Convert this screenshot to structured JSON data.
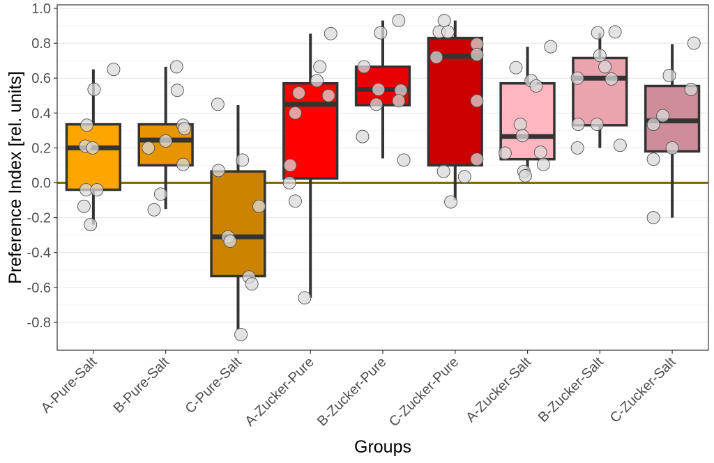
{
  "chart_data": {
    "type": "box",
    "xlabel": "Groups",
    "ylabel": "Preference Index [rel. units]",
    "ylim": [
      -0.96,
      1.02
    ],
    "yticks": [
      1.0,
      0.8,
      0.6,
      0.4,
      0.2,
      0.0,
      -0.2,
      -0.4,
      -0.6,
      -0.8
    ],
    "ytick_labels": [
      "1.0",
      "0.8",
      "0.6",
      "0.4",
      "0.2",
      "0.0",
      "-0.2",
      "-0.4",
      "-0.6",
      "-0.8"
    ],
    "grid": true,
    "reference_line": {
      "y": 0.0,
      "color": "#7f6a00"
    },
    "point_color": "#d9d9d9",
    "categories": [
      "A-Pure-Salt",
      "B-Pure-Salt",
      "C-Pure-Salt",
      "A-Zucker-Pure",
      "B-Zucker-Pure",
      "C-Zucker-Pure",
      "A-Zucker-Salt",
      "B-Zucker-Salt",
      "C-Zucker-Salt"
    ],
    "boxes": [
      {
        "group": "A-Pure-Salt",
        "color": "#ffa500",
        "whisker_low": -0.24,
        "q1": -0.04,
        "median": 0.2,
        "q3": 0.335,
        "whisker_high": 0.65,
        "points": [
          [
            -0.09,
            0.33
          ],
          [
            -0.11,
            0.21
          ],
          [
            -0.01,
            0.2
          ],
          [
            0.01,
            0.535
          ],
          [
            0.28,
            0.65
          ],
          [
            -0.1,
            -0.04
          ],
          [
            0.05,
            -0.04
          ],
          [
            -0.13,
            -0.135
          ],
          [
            -0.04,
            -0.24
          ]
        ]
      },
      {
        "group": "B-Pure-Salt",
        "color": "#e69400",
        "whisker_low": -0.15,
        "q1": 0.1,
        "median": 0.245,
        "q3": 0.335,
        "whisker_high": 0.665,
        "points": [
          [
            0.15,
            0.665
          ],
          [
            0.16,
            0.53
          ],
          [
            0.24,
            0.33
          ],
          [
            0.26,
            0.31
          ],
          [
            0.0,
            0.24
          ],
          [
            -0.24,
            0.2
          ],
          [
            0.24,
            0.105
          ],
          [
            -0.07,
            -0.065
          ],
          [
            -0.16,
            -0.155
          ]
        ]
      },
      {
        "group": "C-Pure-Salt",
        "color": "#cc8400",
        "whisker_low": -0.84,
        "q1": -0.535,
        "median": -0.31,
        "q3": 0.065,
        "whisker_high": 0.445,
        "points": [
          [
            -0.28,
            0.45
          ],
          [
            0.06,
            0.13
          ],
          [
            -0.27,
            0.07
          ],
          [
            0.29,
            -0.135
          ],
          [
            -0.14,
            -0.31
          ],
          [
            -0.11,
            -0.335
          ],
          [
            0.15,
            -0.54
          ],
          [
            0.19,
            -0.58
          ],
          [
            0.04,
            -0.87
          ]
        ]
      },
      {
        "group": "A-Zucker-Pure",
        "color": "#ff0000",
        "whisker_low": -0.66,
        "q1": 0.025,
        "median": 0.45,
        "q3": 0.57,
        "whisker_high": 0.855,
        "points": [
          [
            0.28,
            0.855
          ],
          [
            0.13,
            0.665
          ],
          [
            0.09,
            0.585
          ],
          [
            -0.16,
            0.515
          ],
          [
            0.25,
            0.5
          ],
          [
            -0.21,
            0.4
          ],
          [
            -0.28,
            0.1
          ],
          [
            -0.29,
            0.0
          ],
          [
            -0.21,
            -0.105
          ],
          [
            -0.08,
            -0.66
          ]
        ]
      },
      {
        "group": "B-Zucker-Pure",
        "color": "#e60000",
        "whisker_low": 0.14,
        "q1": 0.445,
        "median": 0.535,
        "q3": 0.665,
        "whisker_high": 0.93,
        "points": [
          [
            0.22,
            0.93
          ],
          [
            -0.03,
            0.86
          ],
          [
            -0.26,
            0.665
          ],
          [
            -0.06,
            0.535
          ],
          [
            0.25,
            0.53
          ],
          [
            0.22,
            0.47
          ],
          [
            -0.09,
            0.45
          ],
          [
            -0.28,
            0.265
          ],
          [
            0.29,
            0.13
          ]
        ]
      },
      {
        "group": "C-Zucker-Pure",
        "color": "#cc0000",
        "whisker_low": -0.1,
        "q1": 0.1,
        "median": 0.725,
        "q3": 0.83,
        "whisker_high": 0.93,
        "points": [
          [
            -0.15,
            0.93
          ],
          [
            -0.22,
            0.865
          ],
          [
            -0.1,
            0.865
          ],
          [
            0.3,
            0.795
          ],
          [
            -0.26,
            0.72
          ],
          [
            0.3,
            0.735
          ],
          [
            0.3,
            0.47
          ],
          [
            0.3,
            0.135
          ],
          [
            -0.16,
            0.065
          ],
          [
            0.13,
            0.035
          ],
          [
            -0.06,
            -0.11
          ]
        ]
      },
      {
        "group": "A-Zucker-Salt",
        "color": "#ffb6c1",
        "whisker_low": 0.04,
        "q1": 0.135,
        "median": 0.265,
        "q3": 0.57,
        "whisker_high": 0.78,
        "points": [
          [
            0.32,
            0.78
          ],
          [
            -0.16,
            0.66
          ],
          [
            0.05,
            0.585
          ],
          [
            0.12,
            0.555
          ],
          [
            -0.1,
            0.335
          ],
          [
            -0.07,
            0.27
          ],
          [
            -0.31,
            0.17
          ],
          [
            0.18,
            0.175
          ],
          [
            0.22,
            0.105
          ],
          [
            -0.05,
            0.065
          ],
          [
            -0.03,
            0.04
          ]
        ]
      },
      {
        "group": "B-Zucker-Salt",
        "color": "#eba4ae",
        "whisker_low": 0.2,
        "q1": 0.33,
        "median": 0.6,
        "q3": 0.715,
        "whisker_high": 0.86,
        "points": [
          [
            -0.03,
            0.86
          ],
          [
            0.21,
            0.865
          ],
          [
            0.0,
            0.73
          ],
          [
            0.07,
            0.665
          ],
          [
            -0.31,
            0.6
          ],
          [
            0.16,
            0.595
          ],
          [
            -0.3,
            0.335
          ],
          [
            -0.04,
            0.335
          ],
          [
            -0.31,
            0.2
          ],
          [
            0.28,
            0.215
          ]
        ]
      },
      {
        "group": "C-Zucker-Salt",
        "color": "#cd8e9a",
        "whisker_low": -0.2,
        "q1": 0.18,
        "median": 0.355,
        "q3": 0.555,
        "whisker_high": 0.795,
        "points": [
          [
            0.3,
            0.8
          ],
          [
            -0.04,
            0.615
          ],
          [
            0.26,
            0.535
          ],
          [
            -0.13,
            0.385
          ],
          [
            -0.26,
            0.335
          ],
          [
            0.0,
            0.2
          ],
          [
            -0.26,
            0.135
          ],
          [
            -0.26,
            -0.2
          ]
        ]
      }
    ]
  }
}
